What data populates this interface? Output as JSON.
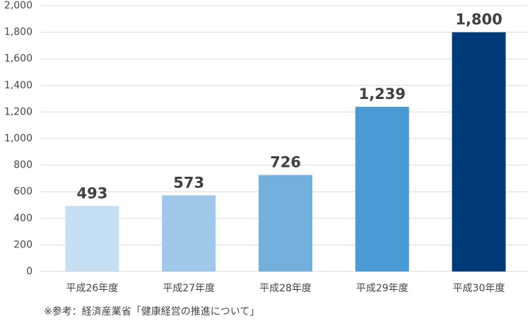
{
  "chart_data": {
    "type": "bar",
    "categories": [
      "平成26年度",
      "平成27年度",
      "平成28年度",
      "平成29年度",
      "平成30年度"
    ],
    "values": [
      493,
      573,
      726,
      1239,
      1800
    ],
    "value_labels": [
      "493",
      "573",
      "726",
      "1,239",
      "1,800"
    ],
    "colors": [
      "#c6dff2",
      "#9fc7e9",
      "#74b0de",
      "#4a9bd5",
      "#003b79"
    ],
    "ylim": [
      0,
      2000
    ],
    "yticks": [
      0,
      200,
      400,
      600,
      800,
      {
        "value": 1000,
        "label": "1,000"
      },
      {
        "value": 1200,
        "label": "1,200"
      },
      {
        "value": 1400,
        "label": "1,400"
      },
      {
        "value": 1600,
        "label": "1,600"
      },
      {
        "value": 1800,
        "label": "1,800"
      },
      {
        "value": 2000,
        "label": "2,000"
      }
    ],
    "grid": true,
    "note": "※参考：経済産業省「健康経営の推進について」"
  }
}
